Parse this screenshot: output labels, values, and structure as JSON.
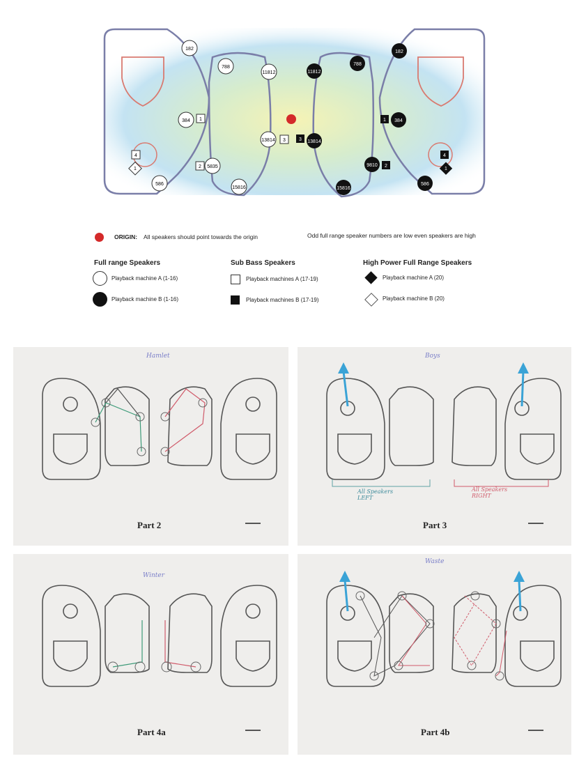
{
  "top_diagram": {
    "left_panel_full_range": [
      {
        "id": "182",
        "style": "white"
      },
      {
        "id": "384",
        "style": "white"
      },
      {
        "id": "586",
        "style": "white"
      },
      {
        "id": "1",
        "style": "white-diamond"
      }
    ],
    "left_inner_full_range": [
      {
        "id": "788",
        "style": "white"
      },
      {
        "id": "11812",
        "style": "white"
      },
      {
        "id": "13814",
        "style": "white"
      },
      {
        "id": "5835",
        "style": "white"
      },
      {
        "id": "15816",
        "style": "white"
      }
    ],
    "right_inner_full_range": [
      {
        "id": "11812",
        "style": "black"
      },
      {
        "id": "788",
        "style": "black"
      },
      {
        "id": "13814",
        "style": "black"
      },
      {
        "id": "9810",
        "style": "black"
      },
      {
        "id": "15816",
        "style": "black"
      }
    ],
    "right_panel_full_range": [
      {
        "id": "182",
        "style": "black"
      },
      {
        "id": "384",
        "style": "black"
      },
      {
        "id": "586",
        "style": "black"
      },
      {
        "id": "1",
        "style": "black-diamond"
      }
    ],
    "sub_bass": [
      {
        "id": "1",
        "style": "white"
      },
      {
        "id": "2",
        "style": "white"
      },
      {
        "id": "3",
        "style": "white"
      },
      {
        "id": "4",
        "style": "white"
      },
      {
        "id": "1",
        "style": "black"
      },
      {
        "id": "2",
        "style": "black"
      },
      {
        "id": "3",
        "style": "black"
      },
      {
        "id": "4",
        "style": "black"
      }
    ]
  },
  "origin_note": {
    "label": "ORIGIN:",
    "text": "All speakers should point towards the origin",
    "side_note": "Odd full range speaker numbers are low even speakers are high"
  },
  "legend": {
    "full_range": {
      "heading": "Full range Speakers",
      "a": "Playback machine A (1-16)",
      "b": "Playback machine B (1-16)"
    },
    "sub_bass": {
      "heading": "Sub Bass Speakers",
      "a": "Playback machines A (17-19)",
      "b": "Playback machines B (17-19)"
    },
    "high_power": {
      "heading": "High Power Full Range Speakers",
      "a": "Playback machine A (20)",
      "b": "Playback machine B (20)"
    }
  },
  "panels": [
    {
      "label": "Part 2",
      "handwriting": "Hamlet"
    },
    {
      "label": "Part 3",
      "handwriting": "Boys",
      "left_note": "All Speakers LEFT",
      "right_note": "All Speakers RIGHT"
    },
    {
      "label": "Part 4a",
      "handwriting": "Winter"
    },
    {
      "label": "Part 4b",
      "handwriting": "Waste"
    }
  ],
  "colors": {
    "outline": "#7a7ea8",
    "inner_red": "#d97a70",
    "origin": "#d42a2a",
    "arrow": "#3aa3d6",
    "green_line": "#3c9a78",
    "red_line": "#d05a6a"
  }
}
